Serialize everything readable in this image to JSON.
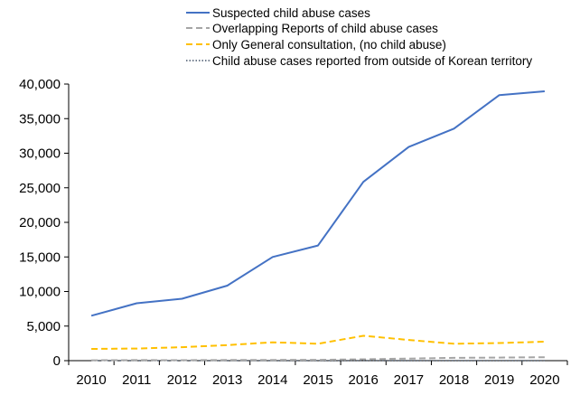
{
  "chart_data": {
    "type": "line",
    "title": "",
    "xlabel": "",
    "ylabel": "",
    "categories": [
      "2010",
      "2011",
      "2012",
      "2013",
      "2014",
      "2015",
      "2016",
      "2017",
      "2018",
      "2019",
      "2020"
    ],
    "ylim": [
      0,
      40000
    ],
    "yticks": [
      "0",
      "5,000",
      "10,000",
      "15,000",
      "20,000",
      "25,000",
      "30,000",
      "35,000",
      "40,000"
    ],
    "grid": false,
    "legend_position": "top",
    "series": [
      {
        "name": "Suspected child abuse cases",
        "values": [
          6500,
          8300,
          8950,
          10850,
          15000,
          16650,
          25850,
          30900,
          33550,
          38400,
          38950
        ],
        "color": "#4472C4",
        "style": "solid"
      },
      {
        "name": "Overlapping Reports of child abuse cases",
        "values": [
          50,
          80,
          70,
          90,
          110,
          120,
          200,
          300,
          400,
          450,
          500
        ],
        "color": "#A5A5A5",
        "style": "dashed"
      },
      {
        "name": "Only General consultation, (no child abuse)",
        "values": [
          1700,
          1750,
          1950,
          2250,
          2650,
          2450,
          3600,
          3000,
          2450,
          2550,
          2750
        ],
        "color": "#FFC000",
        "style": "dashed"
      },
      {
        "name": "Child abuse cases reported from outside of Korean territory",
        "values": [
          10,
          10,
          10,
          10,
          10,
          10,
          15,
          15,
          15,
          15,
          15
        ],
        "color": "#44546A",
        "style": "dotted"
      }
    ]
  }
}
